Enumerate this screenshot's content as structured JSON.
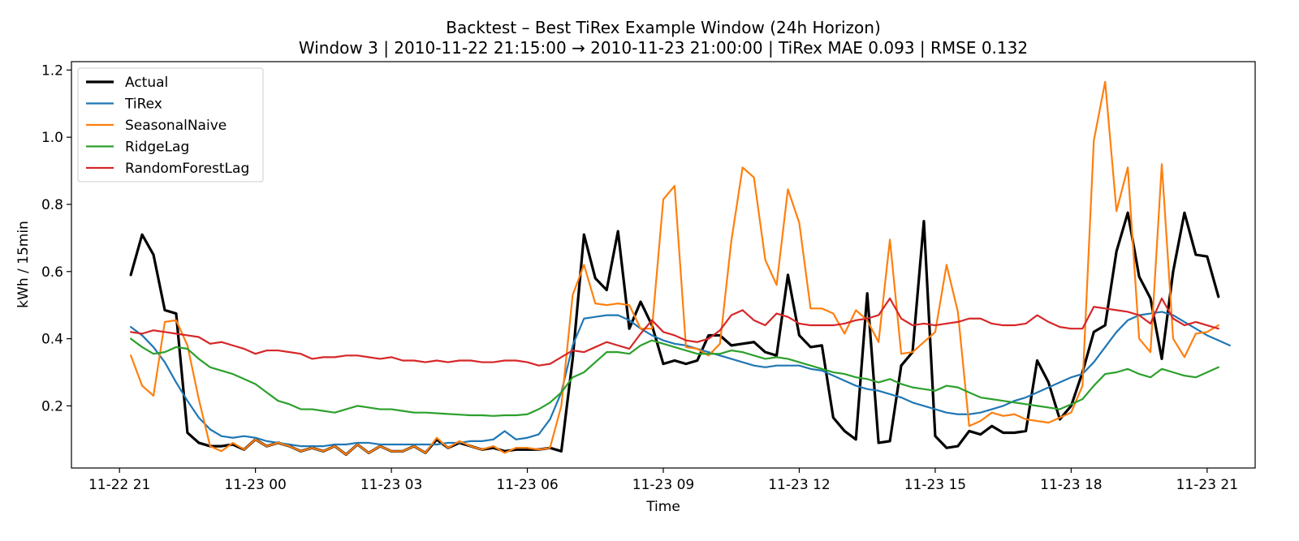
{
  "chart_data": {
    "type": "line",
    "title": "Backtest – Best TiRex Example Window (24h Horizon)",
    "subtitle": "Window 3 | 2010-11-22 21:15:00 → 2010-11-23 21:00:00 | TiRex MAE 0.093 | RMSE 0.132",
    "xlabel": "Time",
    "ylabel": "kWh / 15min",
    "x_start": "2010-11-22 21:15:00",
    "x_end": "2010-11-23 21:00:00",
    "x_interval_minutes": 15,
    "x_ticks": [
      "11-22 21",
      "11-23 00",
      "11-23 03",
      "11-23 06",
      "11-23 09",
      "11-23 12",
      "11-23 15",
      "11-23 18",
      "11-23 21"
    ],
    "y_ticks": [
      "0.2",
      "0.4",
      "0.6",
      "0.8",
      "1.0",
      "1.2"
    ],
    "ylim": [
      0.015,
      1.225
    ],
    "grid": false,
    "legend_position": "upper-left",
    "series": [
      {
        "name": "Actual",
        "color": "#000000",
        "width": 3.2,
        "values": [
          0.59,
          0.71,
          0.65,
          0.485,
          0.475,
          0.12,
          0.09,
          0.08,
          0.08,
          0.085,
          0.07,
          0.1,
          0.08,
          0.09,
          0.08,
          0.065,
          0.075,
          0.065,
          0.08,
          0.055,
          0.085,
          0.06,
          0.08,
          0.065,
          0.065,
          0.08,
          0.06,
          0.1,
          0.075,
          0.09,
          0.08,
          0.07,
          0.075,
          0.065,
          0.07,
          0.07,
          0.07,
          0.075,
          0.065,
          0.34,
          0.71,
          0.58,
          0.545,
          0.72,
          0.43,
          0.51,
          0.44,
          0.325,
          0.335,
          0.325,
          0.335,
          0.41,
          0.41,
          0.38,
          0.385,
          0.39,
          0.36,
          0.35,
          0.59,
          0.41,
          0.375,
          0.38,
          0.165,
          0.125,
          0.1,
          0.535,
          0.09,
          0.095,
          0.32,
          0.36,
          0.75,
          0.11,
          0.075,
          0.08,
          0.125,
          0.115,
          0.14,
          0.12,
          0.12,
          0.125,
          0.335,
          0.27,
          0.16,
          0.2,
          0.3,
          0.42,
          0.44,
          0.66,
          0.775,
          0.585,
          0.52,
          0.34,
          0.6,
          0.775,
          0.65,
          0.645,
          0.525
        ]
      },
      {
        "name": "TiRex",
        "color": "#1f77b4",
        "width": 2.2,
        "values": [
          0.435,
          0.41,
          0.375,
          0.33,
          0.27,
          0.215,
          0.165,
          0.13,
          0.11,
          0.105,
          0.11,
          0.105,
          0.095,
          0.09,
          0.085,
          0.08,
          0.08,
          0.08,
          0.085,
          0.085,
          0.09,
          0.09,
          0.085,
          0.085,
          0.085,
          0.085,
          0.085,
          0.085,
          0.09,
          0.09,
          0.095,
          0.095,
          0.1,
          0.125,
          0.1,
          0.105,
          0.115,
          0.16,
          0.24,
          0.38,
          0.46,
          0.465,
          0.47,
          0.47,
          0.455,
          0.43,
          0.41,
          0.395,
          0.385,
          0.38,
          0.37,
          0.36,
          0.35,
          0.34,
          0.33,
          0.32,
          0.315,
          0.32,
          0.32,
          0.32,
          0.31,
          0.305,
          0.29,
          0.275,
          0.26,
          0.25,
          0.245,
          0.235,
          0.225,
          0.21,
          0.2,
          0.19,
          0.18,
          0.175,
          0.175,
          0.18,
          0.19,
          0.2,
          0.215,
          0.225,
          0.24,
          0.255,
          0.27,
          0.285,
          0.295,
          0.33,
          0.375,
          0.42,
          0.455,
          0.47,
          0.475,
          0.48,
          0.47,
          0.45,
          0.43,
          0.41,
          0.395,
          0.38
        ]
      },
      {
        "name": "SeasonalNaive",
        "color": "#ff7f0e",
        "width": 2.2,
        "values": [
          0.35,
          0.26,
          0.23,
          0.45,
          0.455,
          0.38,
          0.22,
          0.08,
          0.065,
          0.09,
          0.07,
          0.1,
          0.08,
          0.09,
          0.08,
          0.065,
          0.075,
          0.065,
          0.08,
          0.055,
          0.085,
          0.06,
          0.08,
          0.065,
          0.065,
          0.08,
          0.06,
          0.105,
          0.075,
          0.095,
          0.08,
          0.07,
          0.08,
          0.06,
          0.075,
          0.075,
          0.07,
          0.075,
          0.2,
          0.53,
          0.62,
          0.505,
          0.5,
          0.505,
          0.5,
          0.43,
          0.43,
          0.815,
          0.855,
          0.375,
          0.37,
          0.35,
          0.385,
          0.69,
          0.91,
          0.88,
          0.635,
          0.56,
          0.845,
          0.745,
          0.49,
          0.49,
          0.475,
          0.415,
          0.485,
          0.455,
          0.39,
          0.695,
          0.355,
          0.36,
          0.39,
          0.42,
          0.62,
          0.48,
          0.14,
          0.155,
          0.18,
          0.17,
          0.175,
          0.16,
          0.155,
          0.15,
          0.165,
          0.18,
          0.26,
          0.99,
          1.165,
          0.78,
          0.91,
          0.4,
          0.36,
          0.92,
          0.4,
          0.345,
          0.415,
          0.42,
          0.44
        ]
      },
      {
        "name": "RidgeLag",
        "color": "#2ca02c",
        "width": 2.2,
        "values": [
          0.4,
          0.375,
          0.355,
          0.36,
          0.375,
          0.37,
          0.34,
          0.315,
          0.305,
          0.295,
          0.28,
          0.265,
          0.24,
          0.215,
          0.205,
          0.19,
          0.19,
          0.185,
          0.18,
          0.19,
          0.2,
          0.195,
          0.19,
          0.19,
          0.185,
          0.18,
          0.18,
          0.178,
          0.176,
          0.174,
          0.172,
          0.172,
          0.17,
          0.172,
          0.172,
          0.175,
          0.19,
          0.21,
          0.24,
          0.285,
          0.3,
          0.33,
          0.36,
          0.36,
          0.355,
          0.38,
          0.395,
          0.385,
          0.375,
          0.365,
          0.355,
          0.355,
          0.355,
          0.365,
          0.36,
          0.35,
          0.34,
          0.345,
          0.34,
          0.33,
          0.32,
          0.31,
          0.3,
          0.295,
          0.285,
          0.28,
          0.27,
          0.28,
          0.265,
          0.255,
          0.25,
          0.245,
          0.26,
          0.255,
          0.24,
          0.225,
          0.22,
          0.215,
          0.21,
          0.205,
          0.2,
          0.195,
          0.19,
          0.205,
          0.22,
          0.26,
          0.295,
          0.3,
          0.31,
          0.295,
          0.285,
          0.31,
          0.3,
          0.29,
          0.285,
          0.3,
          0.315
        ]
      },
      {
        "name": "RandomForestLag",
        "color": "#d62728",
        "width": 2.2,
        "values": [
          0.42,
          0.415,
          0.425,
          0.42,
          0.415,
          0.41,
          0.405,
          0.385,
          0.39,
          0.38,
          0.37,
          0.355,
          0.365,
          0.365,
          0.36,
          0.355,
          0.34,
          0.345,
          0.345,
          0.35,
          0.35,
          0.345,
          0.34,
          0.345,
          0.335,
          0.335,
          0.33,
          0.335,
          0.33,
          0.335,
          0.335,
          0.33,
          0.33,
          0.335,
          0.335,
          0.33,
          0.32,
          0.325,
          0.345,
          0.365,
          0.36,
          0.375,
          0.39,
          0.38,
          0.37,
          0.415,
          0.455,
          0.42,
          0.41,
          0.395,
          0.39,
          0.4,
          0.425,
          0.47,
          0.485,
          0.455,
          0.44,
          0.475,
          0.465,
          0.445,
          0.44,
          0.44,
          0.44,
          0.445,
          0.455,
          0.46,
          0.47,
          0.52,
          0.46,
          0.44,
          0.445,
          0.44,
          0.445,
          0.45,
          0.46,
          0.46,
          0.445,
          0.44,
          0.44,
          0.445,
          0.47,
          0.45,
          0.435,
          0.43,
          0.43,
          0.495,
          0.49,
          0.485,
          0.48,
          0.47,
          0.445,
          0.52,
          0.46,
          0.44,
          0.45,
          0.44,
          0.43
        ]
      }
    ]
  }
}
